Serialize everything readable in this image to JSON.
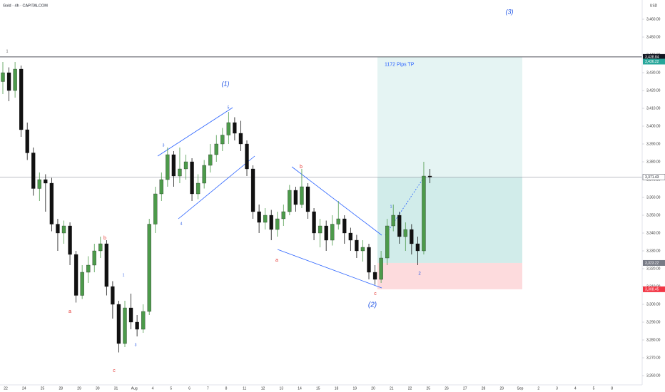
{
  "chart_data": {
    "type": "candlestick",
    "title": "Gold · 4h · CAPITALCOM",
    "currency": "USD",
    "up_color": "#4c9a4a",
    "down_color": "#111111",
    "ylim": [
      3254.8,
      3470.8
    ],
    "yticks": [
      {
        "value": 3260,
        "label": "3,260.00"
      },
      {
        "value": 3270,
        "label": "3,270.00"
      },
      {
        "value": 3280,
        "label": "3,280.00"
      },
      {
        "value": 3290,
        "label": "3,290.00"
      },
      {
        "value": 3300,
        "label": "3,300.00"
      },
      {
        "value": 3310,
        "label": "3,310.00"
      },
      {
        "value": 3320,
        "label": "3,320.00"
      },
      {
        "value": 3330,
        "label": "3,330.00"
      },
      {
        "value": 3340,
        "label": "3,340.00"
      },
      {
        "value": 3350,
        "label": "3,350.00"
      },
      {
        "value": 3360,
        "label": "3,360.00"
      },
      {
        "value": 3370,
        "label": "3,370.00"
      },
      {
        "value": 3380,
        "label": "3,380.00"
      },
      {
        "value": 3390,
        "label": "3,390.00"
      },
      {
        "value": 3400,
        "label": "3,400.00"
      },
      {
        "value": 3410,
        "label": "3,410.00"
      },
      {
        "value": 3420,
        "label": "3,420.00"
      },
      {
        "value": 3430,
        "label": "3,430.00"
      },
      {
        "value": 3440,
        "label": "3,440.00"
      },
      {
        "value": 3450,
        "label": "3,450.00"
      },
      {
        "value": 3460,
        "label": "3,460.00"
      }
    ],
    "dates": [
      "22",
      "24",
      "25",
      "28",
      "29",
      "30",
      "31",
      "Aug",
      "4",
      "5",
      "6",
      "7",
      "8",
      "11",
      "12",
      "13",
      "14",
      "15",
      "18",
      "19",
      "20",
      "21",
      "22",
      "25",
      "26",
      "27",
      "28",
      "29",
      "Sep",
      "2",
      "3",
      "4",
      "5",
      "8"
    ],
    "open": [
      3425,
      3430,
      3420,
      3432,
      3398,
      3385,
      3365,
      3370,
      3368,
      3345,
      3340,
      3344,
      3328,
      3305,
      3318,
      3322,
      3330,
      3334,
      3310,
      3300,
      3278,
      3298,
      3290,
      3286,
      3296,
      3345,
      3362,
      3370,
      3384,
      3372,
      3376,
      3380,
      3362,
      3368,
      3378,
      3384,
      3390,
      3395,
      3402,
      3396,
      3390,
      3376,
      3352,
      3346,
      3350,
      3342,
      3348,
      3352,
      3364,
      3356,
      3366,
      3352,
      3340,
      3344,
      3336,
      3345,
      3348,
      3340,
      3336,
      3330,
      3332,
      3318,
      3314,
      3326,
      3344,
      3350,
      3338,
      3342,
      3334,
      3330,
      3372
    ],
    "high": [
      3436,
      3433,
      3436,
      3434,
      3402,
      3388,
      3374,
      3373,
      3371,
      3348,
      3347,
      3346,
      3330,
      3322,
      3327,
      3334,
      3338,
      3336,
      3313,
      3302,
      3302,
      3306,
      3294,
      3300,
      3348,
      3366,
      3374,
      3388,
      3386,
      3388,
      3384,
      3382,
      3373,
      3381,
      3390,
      3395,
      3399,
      3408,
      3405,
      3403,
      3392,
      3378,
      3356,
      3354,
      3353,
      3352,
      3356,
      3367,
      3366,
      3376,
      3368,
      3354,
      3348,
      3347,
      3350,
      3358,
      3350,
      3343,
      3339,
      3336,
      3334,
      3322,
      3330,
      3348,
      3356,
      3352,
      3346,
      3345,
      3338,
      3380,
      3376
    ],
    "low": [
      3418,
      3414,
      3416,
      3394,
      3381,
      3361,
      3358,
      3352,
      3341,
      3330,
      3334,
      3322,
      3301,
      3303,
      3312,
      3318,
      3326,
      3305,
      3292,
      3273,
      3276,
      3286,
      3282,
      3284,
      3294,
      3340,
      3358,
      3366,
      3366,
      3368,
      3370,
      3358,
      3359,
      3365,
      3374,
      3380,
      3386,
      3390,
      3392,
      3386,
      3372,
      3348,
      3340,
      3342,
      3336,
      3338,
      3344,
      3350,
      3352,
      3354,
      3348,
      3336,
      3332,
      3330,
      3333,
      3342,
      3334,
      3330,
      3326,
      3324,
      3314,
      3311,
      3312,
      3322,
      3341,
      3334,
      3330,
      3328,
      3322,
      3328,
      3368
    ],
    "close": [
      3430,
      3420,
      3432,
      3398,
      3385,
      3365,
      3370,
      3368,
      3345,
      3340,
      3344,
      3328,
      3305,
      3318,
      3322,
      3330,
      3334,
      3310,
      3300,
      3278,
      3298,
      3290,
      3286,
      3296,
      3345,
      3362,
      3370,
      3384,
      3372,
      3376,
      3380,
      3362,
      3368,
      3378,
      3384,
      3390,
      3395,
      3402,
      3396,
      3390,
      3376,
      3352,
      3346,
      3350,
      3342,
      3348,
      3352,
      3364,
      3356,
      3366,
      3352,
      3340,
      3344,
      3336,
      3345,
      3348,
      3340,
      3336,
      3330,
      3332,
      3318,
      3314,
      3326,
      3344,
      3350,
      3338,
      3342,
      3334,
      3330,
      3372,
      3371.43
    ],
    "price_labels": [
      {
        "value": 3438.84,
        "label": "3,438.84",
        "color": "#131722"
      },
      {
        "value": 3436.22,
        "label": "3,436.22",
        "color": "#26a69a"
      },
      {
        "value": 3371.43,
        "label": "3,371.43",
        "color": "#ffffff"
      },
      {
        "value": 3323.22,
        "label": "3,323.22",
        "color": "#787b86"
      },
      {
        "value": 3308.45,
        "label": "3,308.45",
        "color": "#f23645"
      }
    ],
    "target_text": "1172 Pips TP",
    "annotations": [
      {
        "text": "1",
        "color": "#555555"
      },
      {
        "text": "(1)",
        "color": "#1e53e5"
      },
      {
        "text": "(2)",
        "color": "#1e53e5"
      },
      {
        "text": "(3)",
        "color": "#1e53e5"
      },
      {
        "text": "a",
        "color": "#e53935"
      },
      {
        "text": "b",
        "color": "#e53935"
      },
      {
        "text": "c",
        "color": "#e53935"
      },
      {
        "text": "a",
        "color": "#e53935"
      },
      {
        "text": "b",
        "color": "#e53935"
      },
      {
        "text": "c",
        "color": "#e53935"
      },
      {
        "text": "1",
        "color": "#1e53e5"
      },
      {
        "text": "3",
        "color": "#1e53e5"
      },
      {
        "text": "3",
        "color": "#1e53e5"
      },
      {
        "text": "4",
        "color": "#1e53e5"
      },
      {
        "text": "5",
        "color": "#1e53e5"
      },
      {
        "text": "1",
        "color": "#1e53e5"
      },
      {
        "text": "2",
        "color": "#1e53e5"
      }
    ]
  }
}
